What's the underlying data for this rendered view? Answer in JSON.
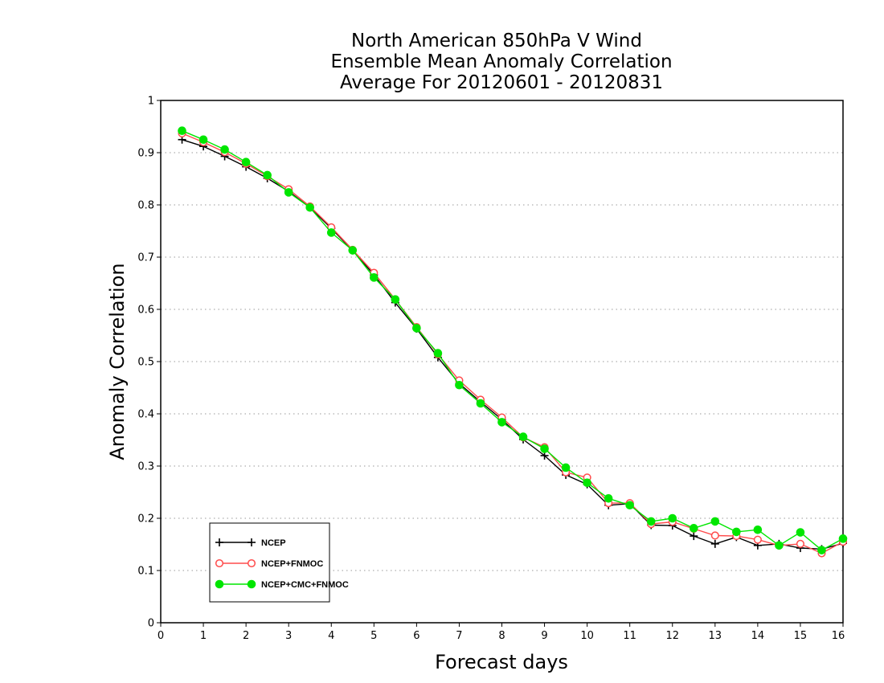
{
  "chart_data": {
    "type": "line",
    "title": [
      "North American 850hPa V Wind",
      "Ensemble Mean Anomaly Correlation",
      "Average For 20120601 - 20120831"
    ],
    "xlabel": "Forecast days",
    "ylabel": "Anomaly Correlation",
    "xlim": [
      0,
      16
    ],
    "ylim": [
      0,
      1
    ],
    "x_ticks": [
      "0",
      "1",
      "2",
      "3",
      "4",
      "5",
      "6",
      "7",
      "8",
      "9",
      "10",
      "11",
      "12",
      "13",
      "14",
      "15",
      "16"
    ],
    "y_ticks": [
      "0",
      "0.1",
      "0.2",
      "0.3",
      "0.4",
      "0.5",
      "0.6",
      "0.7",
      "0.8",
      "0.9",
      "1"
    ],
    "grid": "horizontal dotted",
    "legend_position": "bottom-left",
    "x": [
      0.5,
      1,
      1.5,
      2,
      2.5,
      3,
      3.5,
      4,
      4.5,
      5,
      5.5,
      6,
      6.5,
      7,
      7.5,
      8,
      8.5,
      9,
      9.5,
      10,
      10.5,
      11,
      11.5,
      12,
      12.5,
      13,
      13.5,
      14,
      14.5,
      15,
      15.5,
      16
    ],
    "series": [
      {
        "name": "NCEP",
        "color": "#000000",
        "marker": "plus",
        "values": [
          0.925,
          0.912,
          0.893,
          0.873,
          0.851,
          0.826,
          0.795,
          0.755,
          0.713,
          0.666,
          0.613,
          0.563,
          0.508,
          0.458,
          0.423,
          0.389,
          0.351,
          0.32,
          0.283,
          0.265,
          0.225,
          0.228,
          0.187,
          0.186,
          0.166,
          0.151,
          0.164,
          0.148,
          0.151,
          0.143,
          0.141,
          0.152
        ]
      },
      {
        "name": "NCEP+FNMOC",
        "color": "#ff4b4b",
        "marker": "open-circle",
        "values": [
          0.937,
          0.92,
          0.901,
          0.879,
          0.855,
          0.83,
          0.797,
          0.757,
          0.714,
          0.67,
          0.619,
          0.566,
          0.514,
          0.464,
          0.427,
          0.393,
          0.355,
          0.336,
          0.288,
          0.278,
          0.229,
          0.229,
          0.189,
          0.193,
          0.18,
          0.167,
          0.166,
          0.159,
          0.148,
          0.151,
          0.133,
          0.155
        ]
      },
      {
        "name": "NCEP+CMC+FNMOC",
        "color": "#00e600",
        "marker": "filled-circle",
        "values": [
          0.942,
          0.925,
          0.906,
          0.882,
          0.857,
          0.824,
          0.795,
          0.747,
          0.713,
          0.661,
          0.619,
          0.564,
          0.516,
          0.455,
          0.42,
          0.384,
          0.356,
          0.333,
          0.297,
          0.268,
          0.238,
          0.225,
          0.194,
          0.2,
          0.181,
          0.194,
          0.174,
          0.178,
          0.148,
          0.173,
          0.139,
          0.161
        ]
      }
    ]
  }
}
